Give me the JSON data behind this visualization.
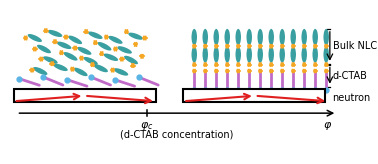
{
  "fig_width": 3.78,
  "fig_height": 1.64,
  "dpi": 100,
  "background": "#ffffff",
  "teal_color": "#3a9fa0",
  "orange_color": "#f5a623",
  "purple_color": "#c06bc8",
  "blue_color": "#5ab4e5",
  "red_color": "#e02020",
  "black_color": "#000000",
  "text_neutron": "neutron",
  "text_dctab": "d-CTAB",
  "text_nlc": "Bulk NLC",
  "text_conc": "(d-CTAB concentration)"
}
